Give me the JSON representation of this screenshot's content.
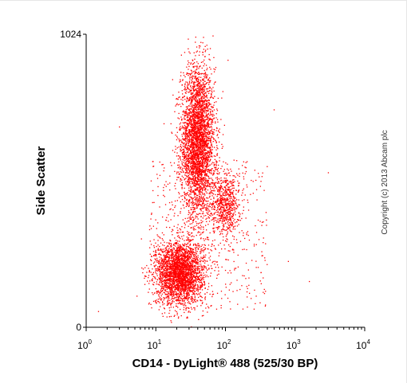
{
  "chart_data": {
    "type": "scatter",
    "title": "",
    "xlabel": "CD14 - DyLight® 488 (525/30 BP)",
    "ylabel": "Side Scatter",
    "x_scale": "log",
    "xlim": [
      1,
      10000
    ],
    "ylim": [
      0,
      1024
    ],
    "x_ticks": [
      {
        "base": "10",
        "exp": "0"
      },
      {
        "base": "10",
        "exp": "1"
      },
      {
        "base": "10",
        "exp": "2"
      },
      {
        "base": "10",
        "exp": "3"
      },
      {
        "base": "10",
        "exp": "4"
      }
    ],
    "y_ticks": [
      "0",
      "1024"
    ],
    "grid": false,
    "legend": "none",
    "point_color": "#ff0000",
    "populations": [
      {
        "center_x": 40,
        "center_y": 650,
        "spread_log_x": 0.12,
        "spread_y": 130,
        "count": 3600
      },
      {
        "center_x": 22,
        "center_y": 190,
        "spread_log_x": 0.17,
        "spread_y": 55,
        "count": 2800
      },
      {
        "center_x": 100,
        "center_y": 430,
        "spread_log_x": 0.1,
        "spread_y": 55,
        "count": 650
      }
    ],
    "scatter_noise_count": 500,
    "outlier_points": [
      {
        "x": 3,
        "y": 700
      },
      {
        "x": 500,
        "y": 760
      },
      {
        "x": 800,
        "y": 230
      },
      {
        "x": 1600,
        "y": 160
      },
      {
        "x": 3000,
        "y": 540
      },
      {
        "x": 1.5,
        "y": 55
      }
    ]
  },
  "copyright": "Copyright (c) 2013 Abcam plc"
}
